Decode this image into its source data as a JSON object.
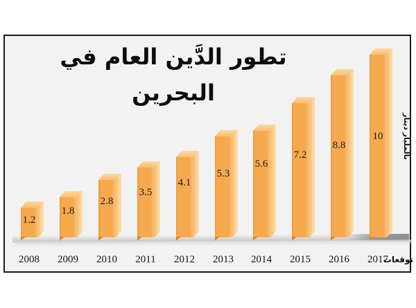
{
  "title": "تطور الدَّين العام في البحرين",
  "y_axis_caption": "بالمليار دينار",
  "forecast_note": "توقعات",
  "chart_data": {
    "type": "bar",
    "title": "تطور الدَّين العام في البحرين",
    "categories": [
      "2008",
      "2009",
      "2010",
      "2011",
      "2012",
      "2013",
      "2014",
      "2015",
      "2016",
      "2017"
    ],
    "values": [
      1.2,
      1.8,
      2.8,
      3.5,
      4.1,
      5.3,
      5.6,
      7.2,
      8.8,
      10
    ],
    "value_labels": [
      "1.2",
      "1.8",
      "2.8",
      "3.5",
      "4.1",
      "5.3",
      "5.6",
      "7.2",
      "8.8",
      "10"
    ],
    "ylabel": "بالمليار دينار",
    "xlabel": "",
    "last_category_note": "توقعات",
    "ylim": [
      0,
      10
    ],
    "grid": false,
    "legend": false,
    "bar_style": "3d",
    "colors": {
      "bar_front": "#f6a94e",
      "bar_front_edge": "#ef9f41",
      "bar_top": "#f9c37c",
      "bar_side_inner": "#f8bc6e",
      "bar_side_light": "#fbdaa5",
      "bar_base_wedge": "#d8892f",
      "chart_background": "#f2f2f2",
      "frame_border": "#1a1a1a",
      "floor_light": "#dedede",
      "floor_dark": "#8f8f8f",
      "text": "#111111"
    }
  }
}
